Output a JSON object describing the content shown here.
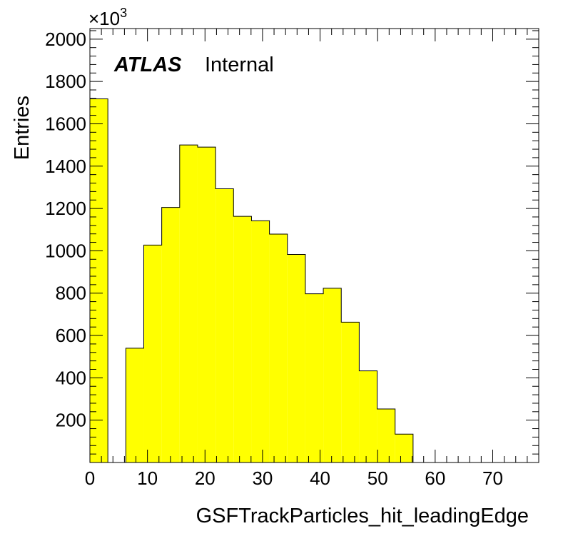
{
  "chart_data": {
    "type": "bar",
    "xlabel": "GSFTrackParticles_hit_leadingEdge",
    "ylabel": "Entries",
    "y_multiplier_base": "×10",
    "y_multiplier_exp": "3",
    "experiment": "ATLAS",
    "status": "Internal",
    "xlim": [
      0,
      78
    ],
    "ylim": [
      0,
      2050
    ],
    "x_ticks": [
      0,
      10,
      20,
      30,
      40,
      50,
      60,
      70
    ],
    "y_ticks": [
      200,
      400,
      600,
      800,
      1000,
      1200,
      1400,
      1600,
      1800,
      2000
    ],
    "bin_edges": [
      0,
      3.12,
      6.24,
      9.36,
      12.48,
      15.6,
      18.72,
      21.84,
      24.96,
      28.08,
      31.2,
      34.32,
      37.44,
      40.56,
      43.68,
      46.8,
      49.92,
      53.04,
      56.16,
      59.28,
      62.4,
      65.52,
      68.64,
      71.76,
      74.88,
      78
    ],
    "values": [
      1718,
      0,
      540,
      1027,
      1205,
      1500,
      1490,
      1293,
      1163,
      1142,
      1079,
      983,
      797,
      823,
      663,
      433,
      253,
      134,
      0,
      0,
      0,
      0,
      0,
      0,
      0
    ],
    "bar_color": "#ffff00",
    "line_color": "#000000",
    "grid": false,
    "legend": "none"
  }
}
